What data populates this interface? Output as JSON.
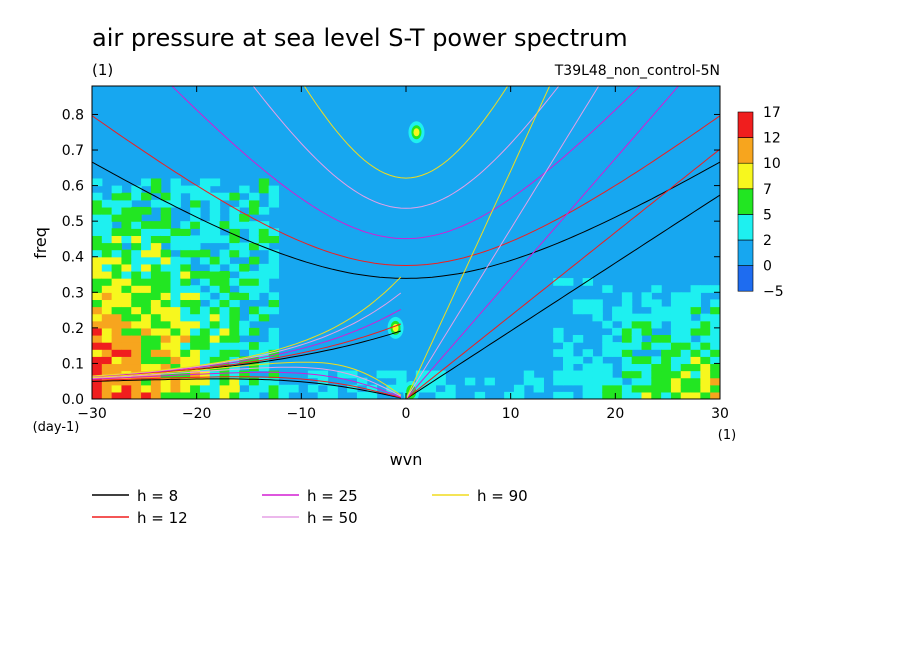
{
  "chart_data": {
    "type": "heatmap",
    "title": "air pressure at sea level S-T power spectrum",
    "subtitle_left": "(1)",
    "subtitle_right": "T39L48_non_control-5N",
    "xlabel": "wvn",
    "ylabel": "freq",
    "x_unit": "(1)",
    "y_unit": "(day-1)",
    "xlim": [
      -30,
      30
    ],
    "ylim": [
      0,
      0.88
    ],
    "x_ticks": [
      -30,
      -20,
      -10,
      0,
      10,
      20,
      30
    ],
    "x_tick_labels": [
      "−30",
      "−20",
      "−10",
      "0",
      "10",
      "20",
      "30"
    ],
    "y_ticks": [
      0,
      0.1,
      0.2,
      0.3,
      0.4,
      0.5,
      0.6,
      0.7,
      0.8
    ],
    "y_tick_labels": [
      "0.0",
      "0.1",
      "0.2",
      "0.3",
      "0.4",
      "0.5",
      "0.6",
      "0.7",
      "0.8"
    ],
    "colorbar": {
      "levels": [
        -5,
        0,
        2,
        5,
        7,
        10,
        12,
        17
      ],
      "level_labels": [
        "−5",
        "0",
        "2",
        "5",
        "7",
        "10",
        "12",
        "17"
      ],
      "colors": [
        "#1e6cf0",
        "#17a7f0",
        "#1ef0f0",
        "#22e622",
        "#f7f71e",
        "#f7a51e",
        "#f01e1e"
      ]
    },
    "background_color": "#17a7f0",
    "series": [
      {
        "name": "h =  8",
        "h": 8,
        "color": "#000000"
      },
      {
        "name": "h = 12",
        "h": 12,
        "color": "#f01e1e"
      },
      {
        "name": "h = 25",
        "h": 25,
        "color": "#d31ed3"
      },
      {
        "name": "h = 50",
        "h": 50,
        "color": "#e6a0e6"
      },
      {
        "name": "h = 90",
        "h": 90,
        "color": "#f0dc1e"
      }
    ]
  }
}
